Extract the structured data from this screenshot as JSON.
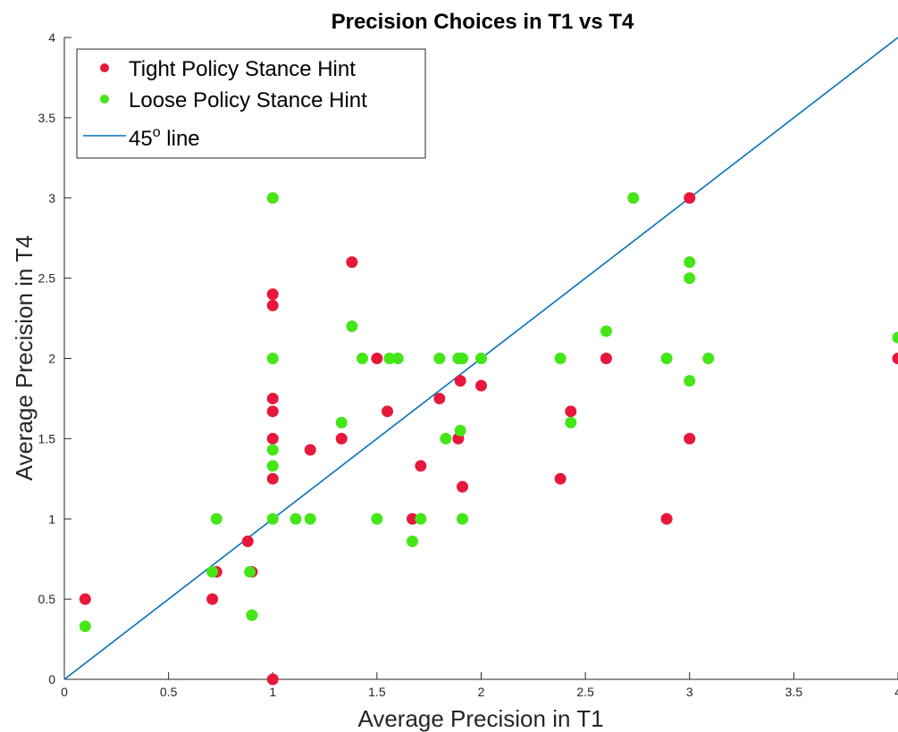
{
  "chart_data": {
    "type": "scatter",
    "title": "Precision Choices in T1 vs T4",
    "xlabel": "Average Precision in T1",
    "ylabel": "Average Precision in T4",
    "xlim": [
      0,
      4
    ],
    "ylim": [
      0,
      4
    ],
    "xticks": [
      "0",
      "0.5",
      "1",
      "1.5",
      "2",
      "2.5",
      "3",
      "3.5",
      "4"
    ],
    "yticks": [
      "0",
      "0.5",
      "1",
      "1.5",
      "2",
      "2.5",
      "3",
      "3.5",
      "4"
    ],
    "grid": false,
    "legend_position": "top-left",
    "series": [
      {
        "name": "Tight Policy Stance Hint",
        "color": "#e8173c",
        "points": [
          [
            0.1,
            0.5
          ],
          [
            0.71,
            0.5
          ],
          [
            0.73,
            0.67
          ],
          [
            0.88,
            0.86
          ],
          [
            0.9,
            0.67
          ],
          [
            1.0,
            0.0
          ],
          [
            1.0,
            1.25
          ],
          [
            1.0,
            1.5
          ],
          [
            1.0,
            1.67
          ],
          [
            1.0,
            1.75
          ],
          [
            1.0,
            2.33
          ],
          [
            1.0,
            2.4
          ],
          [
            1.18,
            1.43
          ],
          [
            1.33,
            1.5
          ],
          [
            1.38,
            2.6
          ],
          [
            1.5,
            2.0
          ],
          [
            1.55,
            1.67
          ],
          [
            1.67,
            1.0
          ],
          [
            1.71,
            1.33
          ],
          [
            1.8,
            1.75
          ],
          [
            1.89,
            1.5
          ],
          [
            1.9,
            1.86
          ],
          [
            1.91,
            1.2
          ],
          [
            2.0,
            1.83
          ],
          [
            2.38,
            1.25
          ],
          [
            2.43,
            1.67
          ],
          [
            2.6,
            2.0
          ],
          [
            2.89,
            1.0
          ],
          [
            3.0,
            1.5
          ],
          [
            3.0,
            3.0
          ],
          [
            4.0,
            2.0
          ]
        ]
      },
      {
        "name": "Loose Policy Stance Hint",
        "color": "#44e617",
        "points": [
          [
            0.1,
            0.33
          ],
          [
            0.71,
            0.67
          ],
          [
            0.73,
            1.0
          ],
          [
            0.89,
            0.67
          ],
          [
            0.9,
            0.4
          ],
          [
            1.0,
            1.0
          ],
          [
            1.0,
            1.33
          ],
          [
            1.0,
            1.43
          ],
          [
            1.0,
            2.0
          ],
          [
            1.0,
            3.0
          ],
          [
            1.11,
            1.0
          ],
          [
            1.18,
            1.0
          ],
          [
            1.33,
            1.6
          ],
          [
            1.38,
            2.2
          ],
          [
            1.43,
            2.0
          ],
          [
            1.5,
            1.0
          ],
          [
            1.56,
            2.0
          ],
          [
            1.6,
            2.0
          ],
          [
            1.67,
            0.86
          ],
          [
            1.71,
            1.0
          ],
          [
            1.8,
            2.0
          ],
          [
            1.83,
            1.5
          ],
          [
            1.89,
            2.0
          ],
          [
            1.9,
            1.55
          ],
          [
            1.91,
            1.0
          ],
          [
            1.91,
            2.0
          ],
          [
            2.0,
            2.0
          ],
          [
            2.38,
            2.0
          ],
          [
            2.43,
            1.6
          ],
          [
            2.6,
            2.17
          ],
          [
            2.73,
            3.0
          ],
          [
            2.89,
            2.0
          ],
          [
            3.0,
            1.86
          ],
          [
            3.0,
            2.5
          ],
          [
            3.0,
            2.6
          ],
          [
            3.09,
            2.0
          ],
          [
            4.0,
            2.13
          ]
        ]
      },
      {
        "name": "45",
        "name_superscript": "o",
        "name_suffix": " line",
        "color": "#0072bd",
        "type": "line",
        "points": [
          [
            0,
            0
          ],
          [
            4,
            4
          ]
        ]
      }
    ]
  }
}
